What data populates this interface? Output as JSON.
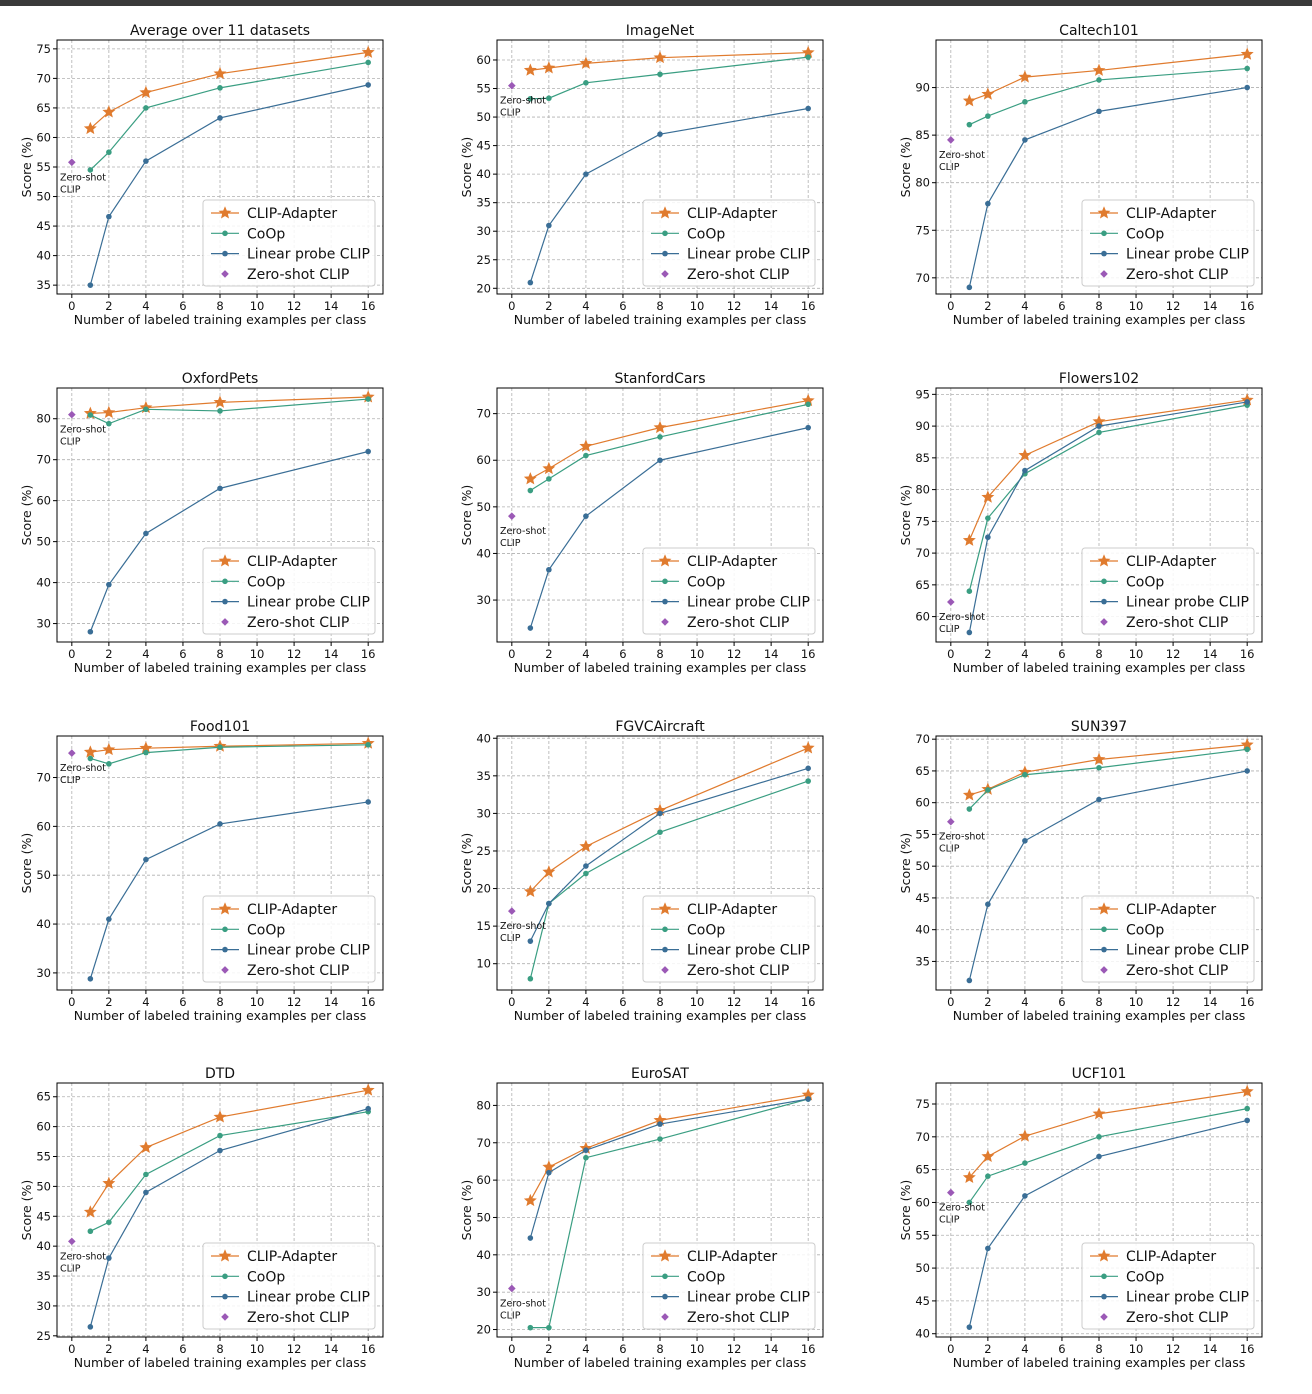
{
  "figure": {
    "xlabel": "Number of labeled training examples per class",
    "ylabel": "Score (%)",
    "legend_labels": [
      "CLIP-Adapter",
      "CoOp",
      "Linear probe CLIP",
      "Zero-shot CLIP"
    ],
    "zs_label_line1": "Zero-shot",
    "zs_label_line2": "CLIP",
    "colors": {
      "clip_adapter": "#e07b2e",
      "coop": "#3a9e82",
      "linear": "#3a6e96",
      "zeroshot": "#9b59b6"
    }
  },
  "chart_data": [
    {
      "type": "line",
      "title": "Average over 11 datasets",
      "xlabel": "Number of labeled training examples per class",
      "ylabel": "Score (%)",
      "x": [
        1,
        2,
        4,
        8,
        16
      ],
      "xlim": [
        -0.8,
        16.8
      ],
      "ylim": [
        33.5,
        76.5
      ],
      "yticks": [
        35,
        40,
        45,
        50,
        55,
        60,
        65,
        70,
        75
      ],
      "xticks": [
        0,
        2,
        4,
        6,
        8,
        10,
        12,
        14,
        16
      ],
      "legend": "lower-right",
      "series": [
        {
          "name": "CLIP-Adapter",
          "values": [
            61.5,
            64.3,
            67.6,
            70.8,
            74.4
          ]
        },
        {
          "name": "CoOp",
          "values": [
            54.5,
            57.5,
            65.0,
            68.4,
            72.7
          ]
        },
        {
          "name": "Linear probe CLIP",
          "values": [
            35.0,
            46.6,
            56.0,
            63.3,
            68.9
          ]
        }
      ],
      "zero_shot": {
        "x": 0,
        "y": 55.8
      }
    },
    {
      "type": "line",
      "title": "ImageNet",
      "xlabel": "Number of labeled training examples per class",
      "ylabel": "Score (%)",
      "x": [
        1,
        2,
        4,
        8,
        16
      ],
      "xlim": [
        -0.8,
        16.8
      ],
      "ylim": [
        19.0,
        63.5
      ],
      "yticks": [
        20,
        25,
        30,
        35,
        40,
        45,
        50,
        55,
        60
      ],
      "xticks": [
        0,
        2,
        4,
        6,
        8,
        10,
        12,
        14,
        16
      ],
      "legend": "lower-right",
      "series": [
        {
          "name": "CLIP-Adapter",
          "values": [
            58.2,
            58.6,
            59.4,
            60.4,
            61.3
          ]
        },
        {
          "name": "CoOp",
          "values": [
            53.2,
            53.3,
            56.0,
            57.5,
            60.5
          ]
        },
        {
          "name": "Linear probe CLIP",
          "values": [
            21.0,
            31.0,
            40.0,
            47.0,
            51.5
          ]
        }
      ],
      "zero_shot": {
        "x": 0,
        "y": 55.5
      }
    },
    {
      "type": "line",
      "title": "Caltech101",
      "xlabel": "Number of labeled training examples per class",
      "ylabel": "Score (%)",
      "x": [
        1,
        2,
        4,
        8,
        16
      ],
      "xlim": [
        -0.8,
        16.8
      ],
      "ylim": [
        68.3,
        95.0
      ],
      "yticks": [
        70,
        75,
        80,
        85,
        90
      ],
      "xticks": [
        0,
        2,
        4,
        6,
        8,
        10,
        12,
        14,
        16
      ],
      "legend": "lower-right",
      "series": [
        {
          "name": "CLIP-Adapter",
          "values": [
            88.6,
            89.3,
            91.1,
            91.8,
            93.5
          ]
        },
        {
          "name": "CoOp",
          "values": [
            86.1,
            87.0,
            88.5,
            90.8,
            92.0
          ]
        },
        {
          "name": "Linear probe CLIP",
          "values": [
            69.0,
            77.8,
            84.5,
            87.5,
            90.0
          ]
        }
      ],
      "zero_shot": {
        "x": 0,
        "y": 84.5
      }
    },
    {
      "type": "line",
      "title": "OxfordPets",
      "xlabel": "Number of labeled training examples per class",
      "ylabel": "Score (%)",
      "x": [
        1,
        2,
        4,
        8,
        16
      ],
      "xlim": [
        -0.8,
        16.8
      ],
      "ylim": [
        25.5,
        87.5
      ],
      "yticks": [
        30,
        40,
        50,
        60,
        70,
        80
      ],
      "xticks": [
        0,
        2,
        4,
        6,
        8,
        10,
        12,
        14,
        16
      ],
      "legend": "lower-right",
      "series": [
        {
          "name": "CLIP-Adapter",
          "values": [
            81.3,
            81.5,
            82.7,
            84.0,
            85.3
          ]
        },
        {
          "name": "CoOp",
          "values": [
            80.9,
            78.8,
            82.3,
            81.9,
            84.8
          ]
        },
        {
          "name": "Linear probe CLIP",
          "values": [
            28.0,
            39.5,
            52.0,
            63.0,
            72.0
          ]
        }
      ],
      "zero_shot": {
        "x": 0,
        "y": 81.0
      }
    },
    {
      "type": "line",
      "title": "StanfordCars",
      "xlabel": "Number of labeled training examples per class",
      "ylabel": "Score (%)",
      "x": [
        1,
        2,
        4,
        8,
        16
      ],
      "xlim": [
        -0.8,
        16.8
      ],
      "ylim": [
        21.0,
        75.5
      ],
      "yticks": [
        30,
        40,
        50,
        60,
        70
      ],
      "xticks": [
        0,
        2,
        4,
        6,
        8,
        10,
        12,
        14,
        16
      ],
      "legend": "lower-right",
      "series": [
        {
          "name": "CLIP-Adapter",
          "values": [
            56.0,
            58.2,
            63.0,
            67.0,
            72.8
          ]
        },
        {
          "name": "CoOp",
          "values": [
            53.5,
            56.0,
            61.0,
            65.0,
            72.0
          ]
        },
        {
          "name": "Linear probe CLIP",
          "values": [
            24.0,
            36.5,
            48.0,
            60.0,
            67.0
          ]
        }
      ],
      "zero_shot": {
        "x": 0,
        "y": 48.0
      }
    },
    {
      "type": "line",
      "title": "Flowers102",
      "xlabel": "Number of labeled training examples per class",
      "ylabel": "Score (%)",
      "x": [
        1,
        2,
        4,
        8,
        16
      ],
      "xlim": [
        -0.8,
        16.8
      ],
      "ylim": [
        56.0,
        96.0
      ],
      "yticks": [
        60,
        65,
        70,
        75,
        80,
        85,
        90,
        95
      ],
      "xticks": [
        0,
        2,
        4,
        6,
        8,
        10,
        12,
        14,
        16
      ],
      "legend": "lower-right",
      "series": [
        {
          "name": "CLIP-Adapter",
          "values": [
            72.0,
            78.8,
            85.4,
            90.7,
            94.1
          ]
        },
        {
          "name": "CoOp",
          "values": [
            64.0,
            75.5,
            82.5,
            89.0,
            93.3
          ]
        },
        {
          "name": "Linear probe CLIP",
          "values": [
            57.5,
            72.5,
            83.0,
            90.0,
            93.8
          ]
        }
      ],
      "zero_shot": {
        "x": 0,
        "y": 62.3
      }
    },
    {
      "type": "line",
      "title": "Food101",
      "xlabel": "Number of labeled training examples per class",
      "ylabel": "Score (%)",
      "x": [
        1,
        2,
        4,
        8,
        16
      ],
      "xlim": [
        -0.8,
        16.8
      ],
      "ylim": [
        26.5,
        78.5
      ],
      "yticks": [
        30,
        40,
        50,
        60,
        70
      ],
      "xticks": [
        0,
        2,
        4,
        6,
        8,
        10,
        12,
        14,
        16
      ],
      "legend": "lower-right",
      "series": [
        {
          "name": "CLIP-Adapter",
          "values": [
            75.2,
            75.7,
            76.0,
            76.4,
            77.0
          ]
        },
        {
          "name": "CoOp",
          "values": [
            73.9,
            72.8,
            75.1,
            76.2,
            76.7
          ]
        },
        {
          "name": "Linear probe CLIP",
          "values": [
            28.8,
            41.0,
            53.2,
            60.5,
            65.0
          ]
        }
      ],
      "zero_shot": {
        "x": 0,
        "y": 75.0
      }
    },
    {
      "type": "line",
      "title": "FGVCAircraft",
      "xlabel": "Number of labeled training examples per class",
      "ylabel": "Score (%)",
      "x": [
        1,
        2,
        4,
        8,
        16
      ],
      "xlim": [
        -0.8,
        16.8
      ],
      "ylim": [
        6.5,
        40.3
      ],
      "yticks": [
        10,
        15,
        20,
        25,
        30,
        35,
        40
      ],
      "xticks": [
        0,
        2,
        4,
        6,
        8,
        10,
        12,
        14,
        16
      ],
      "legend": "lower-right",
      "series": [
        {
          "name": "CLIP-Adapter",
          "values": [
            19.6,
            22.2,
            25.6,
            30.4,
            38.7
          ]
        },
        {
          "name": "CoOp",
          "values": [
            8.0,
            18.0,
            22.0,
            27.5,
            34.3
          ]
        },
        {
          "name": "Linear probe CLIP",
          "values": [
            13.0,
            18.0,
            23.0,
            30.0,
            36.0
          ]
        }
      ],
      "zero_shot": {
        "x": 0,
        "y": 17.0
      }
    },
    {
      "type": "line",
      "title": "SUN397",
      "xlabel": "Number of labeled training examples per class",
      "ylabel": "Score (%)",
      "x": [
        1,
        2,
        4,
        8,
        16
      ],
      "xlim": [
        -0.8,
        16.8
      ],
      "ylim": [
        30.5,
        70.5
      ],
      "yticks": [
        35,
        40,
        45,
        50,
        55,
        60,
        65,
        70
      ],
      "xticks": [
        0,
        2,
        4,
        6,
        8,
        10,
        12,
        14,
        16
      ],
      "legend": "lower-right",
      "series": [
        {
          "name": "CLIP-Adapter",
          "values": [
            61.2,
            62.1,
            64.8,
            66.8,
            69.1
          ]
        },
        {
          "name": "CoOp",
          "values": [
            59.0,
            62.0,
            64.4,
            65.5,
            68.4
          ]
        },
        {
          "name": "Linear probe CLIP",
          "values": [
            32.0,
            44.0,
            54.0,
            60.5,
            65.0
          ]
        }
      ],
      "zero_shot": {
        "x": 0,
        "y": 57.0
      }
    },
    {
      "type": "line",
      "title": "DTD",
      "xlabel": "Number of labeled training examples per class",
      "ylabel": "Score (%)",
      "x": [
        1,
        2,
        4,
        8,
        16
      ],
      "xlim": [
        -0.8,
        16.8
      ],
      "ylim": [
        24.8,
        67.3
      ],
      "yticks": [
        25,
        30,
        35,
        40,
        45,
        50,
        55,
        60,
        65
      ],
      "xticks": [
        0,
        2,
        4,
        6,
        8,
        10,
        12,
        14,
        16
      ],
      "legend": "lower-right",
      "series": [
        {
          "name": "CLIP-Adapter",
          "values": [
            45.7,
            50.5,
            56.5,
            61.6,
            66.1
          ]
        },
        {
          "name": "CoOp",
          "values": [
            42.5,
            44.0,
            52.0,
            58.5,
            62.5
          ]
        },
        {
          "name": "Linear probe CLIP",
          "values": [
            26.5,
            38.0,
            49.0,
            56.0,
            63.0
          ]
        }
      ],
      "zero_shot": {
        "x": 0,
        "y": 40.8
      }
    },
    {
      "type": "line",
      "title": "EuroSAT",
      "xlabel": "Number of labeled training examples per class",
      "ylabel": "Score (%)",
      "x": [
        1,
        2,
        4,
        8,
        16
      ],
      "xlim": [
        -0.8,
        16.8
      ],
      "ylim": [
        18.0,
        86.0
      ],
      "yticks": [
        20,
        30,
        40,
        50,
        60,
        70,
        80
      ],
      "xticks": [
        0,
        2,
        4,
        6,
        8,
        10,
        12,
        14,
        16
      ],
      "legend": "lower-right",
      "series": [
        {
          "name": "CLIP-Adapter",
          "values": [
            54.5,
            63.5,
            68.5,
            76.0,
            82.8
          ]
        },
        {
          "name": "CoOp",
          "values": [
            20.5,
            20.5,
            66.0,
            71.0,
            81.7
          ]
        },
        {
          "name": "Linear probe CLIP",
          "values": [
            44.5,
            62.0,
            68.0,
            75.0,
            81.7
          ]
        }
      ],
      "zero_shot": {
        "x": 0,
        "y": 31.0
      }
    },
    {
      "type": "line",
      "title": "UCF101",
      "xlabel": "Number of labeled training examples per class",
      "ylabel": "Score (%)",
      "x": [
        1,
        2,
        4,
        8,
        16
      ],
      "xlim": [
        -0.8,
        16.8
      ],
      "ylim": [
        39.5,
        78.2
      ],
      "yticks": [
        40,
        45,
        50,
        55,
        60,
        65,
        70,
        75
      ],
      "xticks": [
        0,
        2,
        4,
        6,
        8,
        10,
        12,
        14,
        16
      ],
      "legend": "lower-right",
      "series": [
        {
          "name": "CLIP-Adapter",
          "values": [
            63.8,
            67.0,
            70.1,
            73.5,
            76.9
          ]
        },
        {
          "name": "CoOp",
          "values": [
            60.0,
            64.0,
            66.0,
            70.0,
            74.3
          ]
        },
        {
          "name": "Linear probe CLIP",
          "values": [
            41.0,
            53.0,
            61.0,
            67.0,
            72.5
          ]
        }
      ],
      "zero_shot": {
        "x": 0,
        "y": 61.5
      }
    }
  ]
}
